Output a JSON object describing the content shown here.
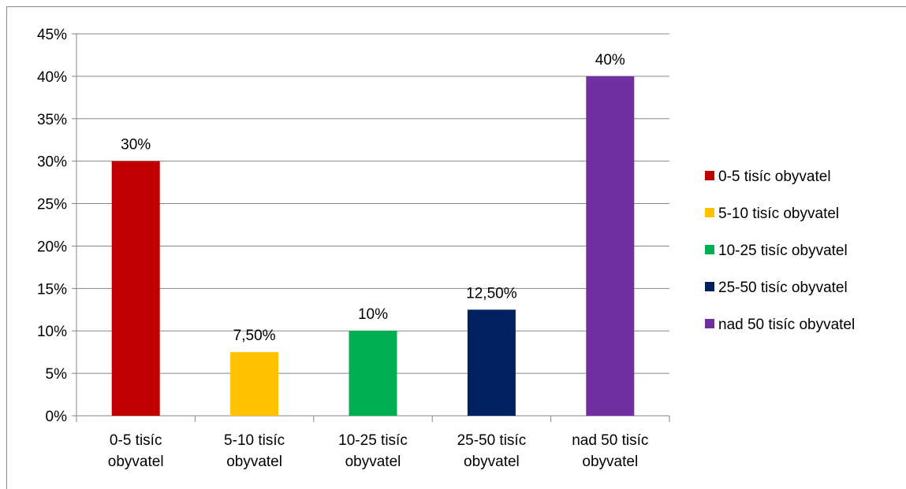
{
  "chart_data": {
    "type": "bar",
    "categories": [
      [
        "0-5 tisíc",
        "obyvatel"
      ],
      [
        "5-10 tisíc",
        "obyvatel"
      ],
      [
        "10-25 tisíc",
        "obyvatel"
      ],
      [
        "25-50 tisíc",
        "obyvatel"
      ],
      [
        "nad 50 tisíc",
        "obyvatel"
      ]
    ],
    "values": [
      30,
      7.5,
      10,
      12.5,
      40
    ],
    "data_labels": [
      "30%",
      "7,50%",
      "10%",
      "12,50%",
      "40%"
    ],
    "colors": [
      "#c00000",
      "#ffc000",
      "#00b050",
      "#002060",
      "#7030a0"
    ],
    "ylim": [
      0,
      45
    ],
    "y_ticks": [
      0,
      5,
      10,
      15,
      20,
      25,
      30,
      35,
      40,
      45
    ],
    "y_tick_labels": [
      "0%",
      "5%",
      "10%",
      "15%",
      "20%",
      "25%",
      "30%",
      "35%",
      "40%",
      "45%"
    ],
    "grid": true,
    "legend_position": "right",
    "legend": [
      "0-5 tisíc obyvatel",
      "5-10 tisíc obyvatel",
      "10-25 tisíc obyvatel",
      "25-50 tisíc obyvatel",
      "nad 50 tisíc obyvatel"
    ],
    "title": "",
    "xlabel": "",
    "ylabel": ""
  }
}
